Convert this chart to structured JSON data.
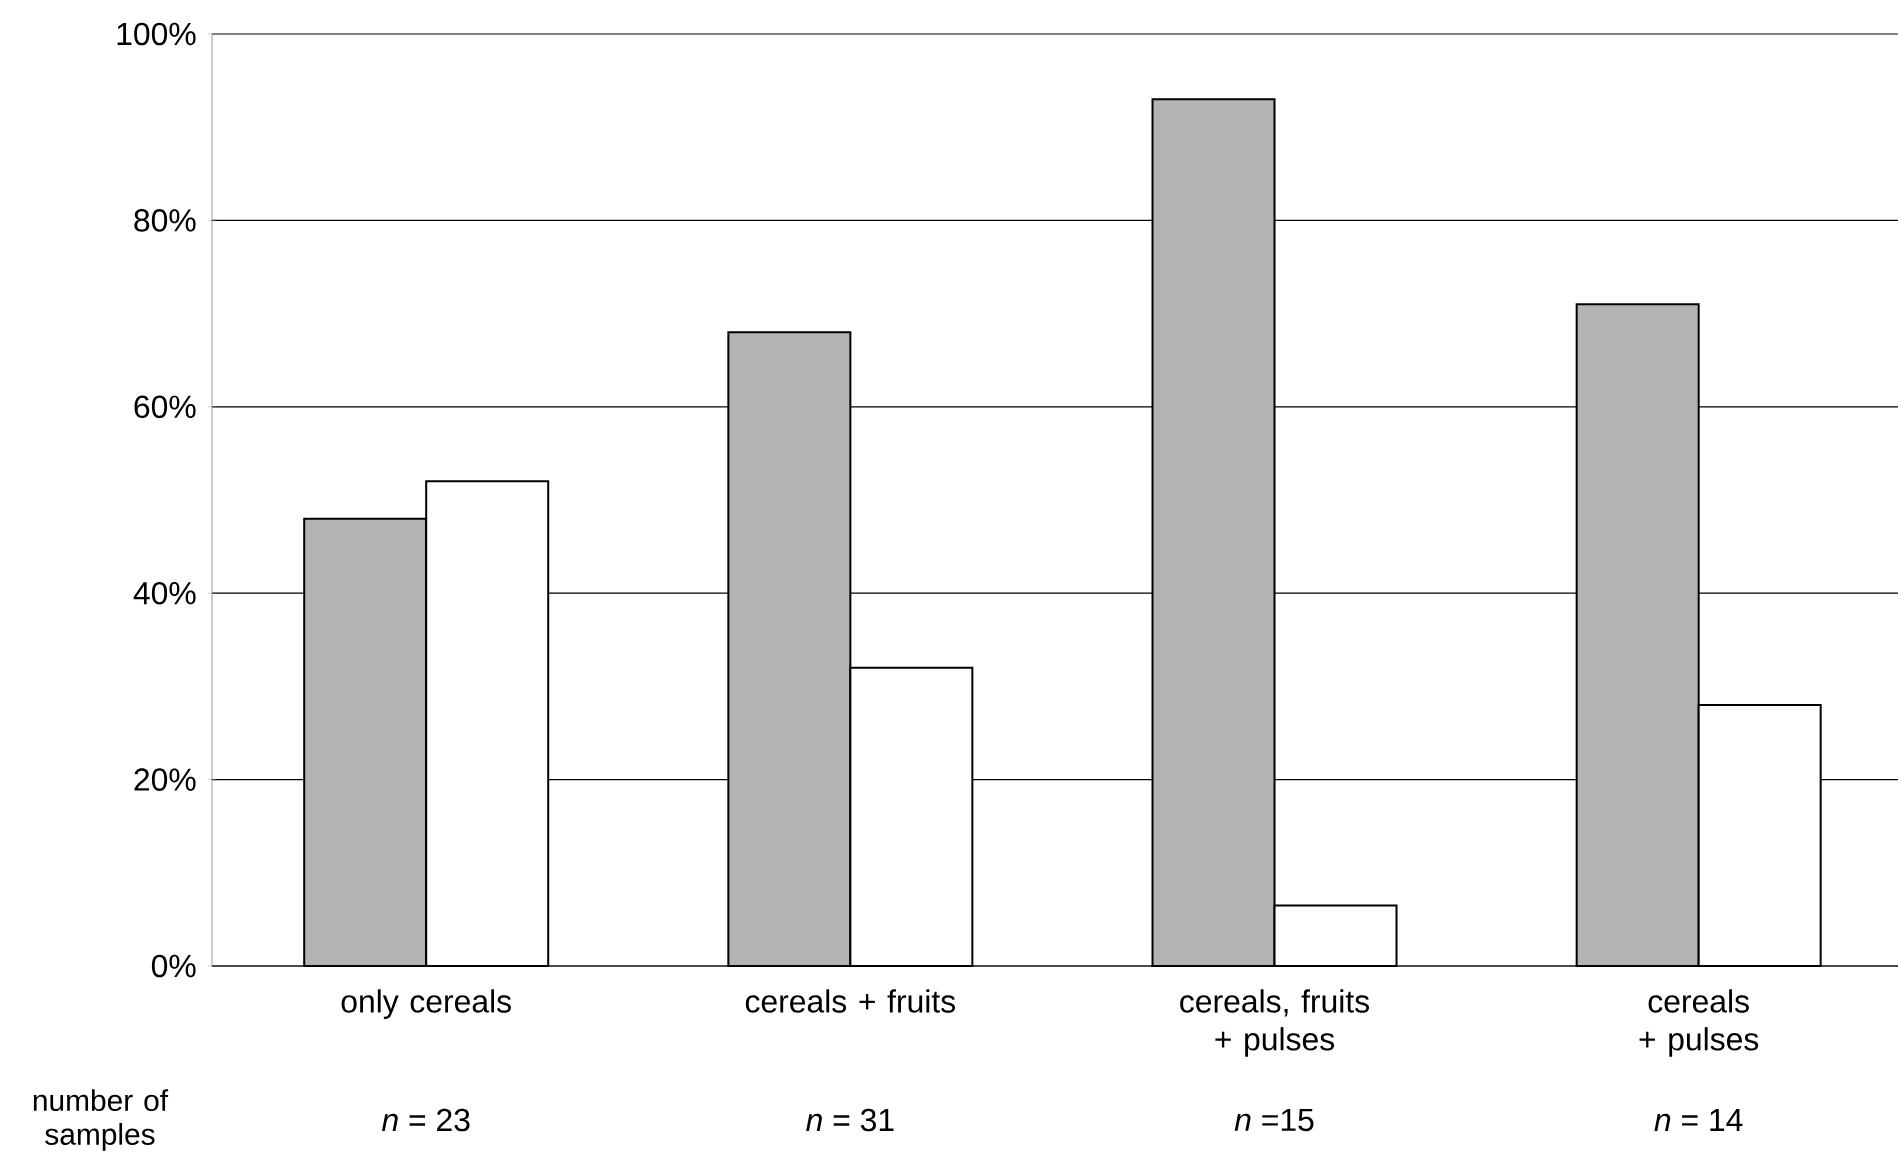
{
  "chart_data": {
    "type": "bar",
    "categories": [
      "only cereals",
      "cereals + fruits",
      "cereals, fruits + pulses",
      "cereals + pulses"
    ],
    "series": [
      {
        "color": "#b3b3b3",
        "values": [
          48,
          68,
          93,
          71
        ]
      },
      {
        "color": "#ffffff",
        "values": [
          52,
          32,
          6.5,
          28
        ]
      }
    ],
    "ylim": [
      0,
      100
    ],
    "yticks": [
      {
        "value": 0,
        "label": "0%"
      },
      {
        "value": 20,
        "label": "20%"
      },
      {
        "value": 40,
        "label": "40%"
      },
      {
        "value": 60,
        "label": "60%"
      },
      {
        "value": 80,
        "label": "80%"
      },
      {
        "value": 100,
        "label": "100%"
      }
    ],
    "grid": "y",
    "annotations": [
      "number of samples",
      "*n* = 23",
      "*n* = 31",
      "*n* =15",
      "*n* = 14"
    ]
  }
}
